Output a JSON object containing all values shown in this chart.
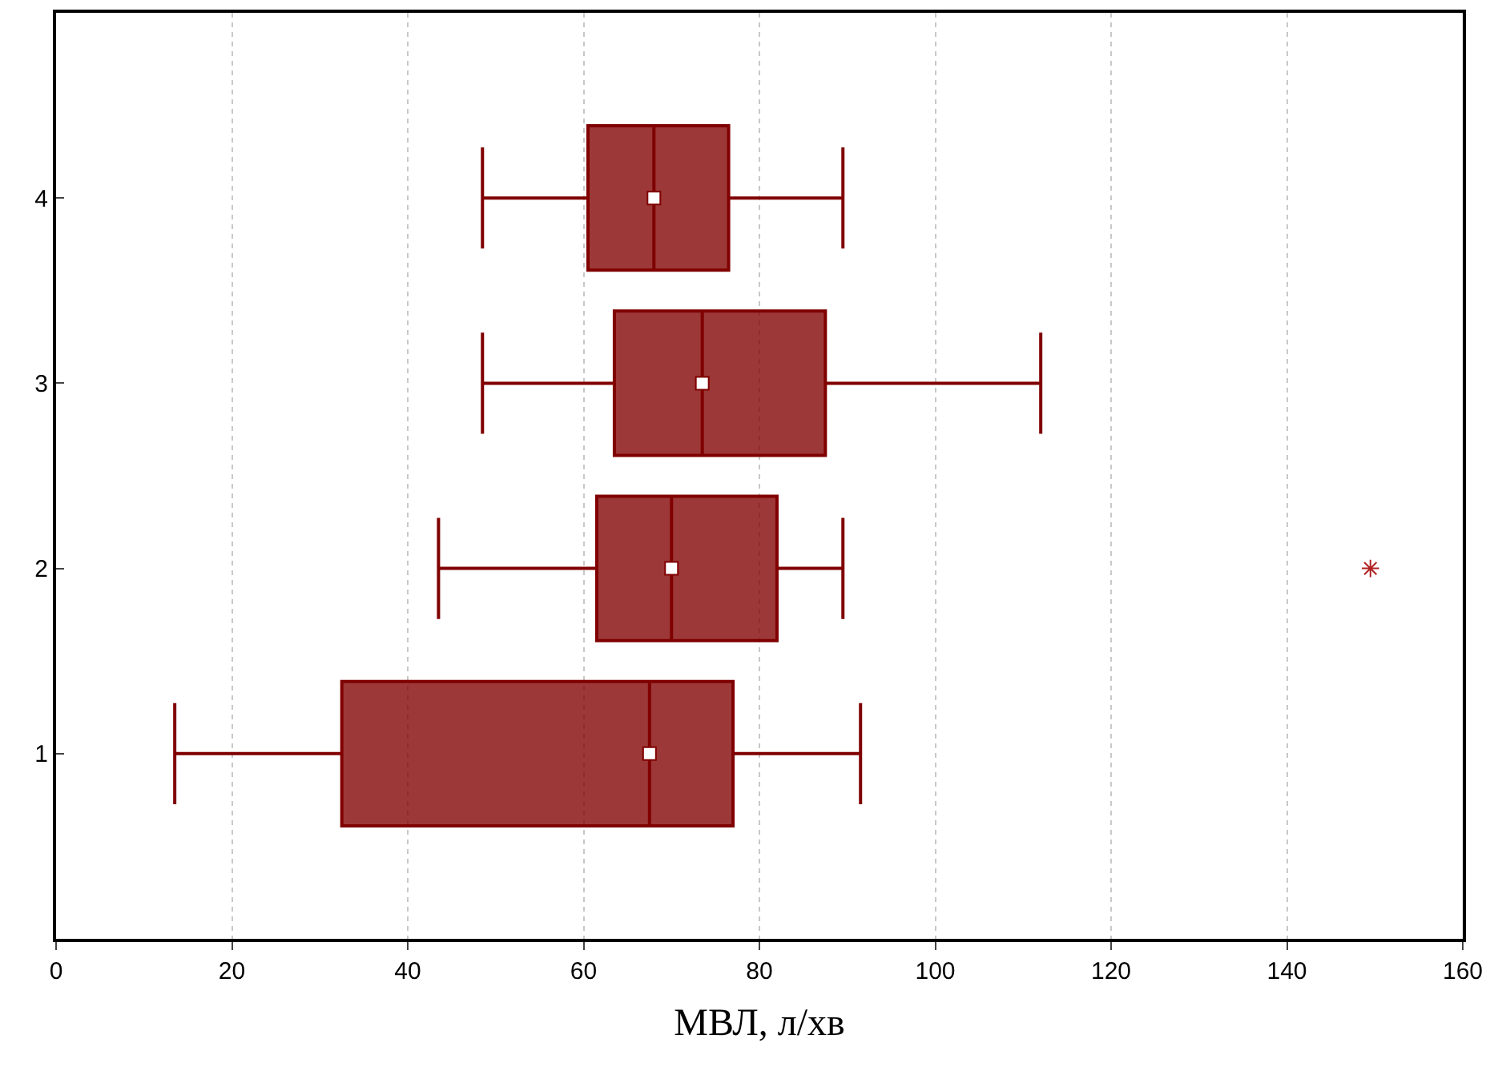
{
  "chart_data": {
    "type": "box",
    "orientation": "horizontal",
    "xlabel": "МВЛ, л/хв",
    "categories": [
      "4",
      "3",
      "2",
      "1"
    ],
    "color": "#800000",
    "boxes": [
      {
        "low": 48.5,
        "q1": 60.5,
        "median": 68,
        "q3": 76.5,
        "high": 89.5
      },
      {
        "low": 48.5,
        "q1": 63.5,
        "median": 73.5,
        "q3": 87.5,
        "high": 112
      },
      {
        "low": 43.5,
        "q1": 61.5,
        "median": 70,
        "q3": 82,
        "high": 89.5,
        "outliers": [
          149.5
        ]
      },
      {
        "low": 13.5,
        "q1": 32.5,
        "median": 67.5,
        "q3": 77,
        "high": 91.5
      }
    ],
    "series": [
      {
        "type": "scatter",
        "color": "#ffffff",
        "marker": "square",
        "values": [
          68,
          73.5,
          70,
          67.5
        ]
      }
    ],
    "xlim": [
      0,
      160
    ],
    "xticks": [
      0,
      20,
      40,
      60,
      80,
      100,
      120,
      140,
      160
    ],
    "grid": "x"
  }
}
